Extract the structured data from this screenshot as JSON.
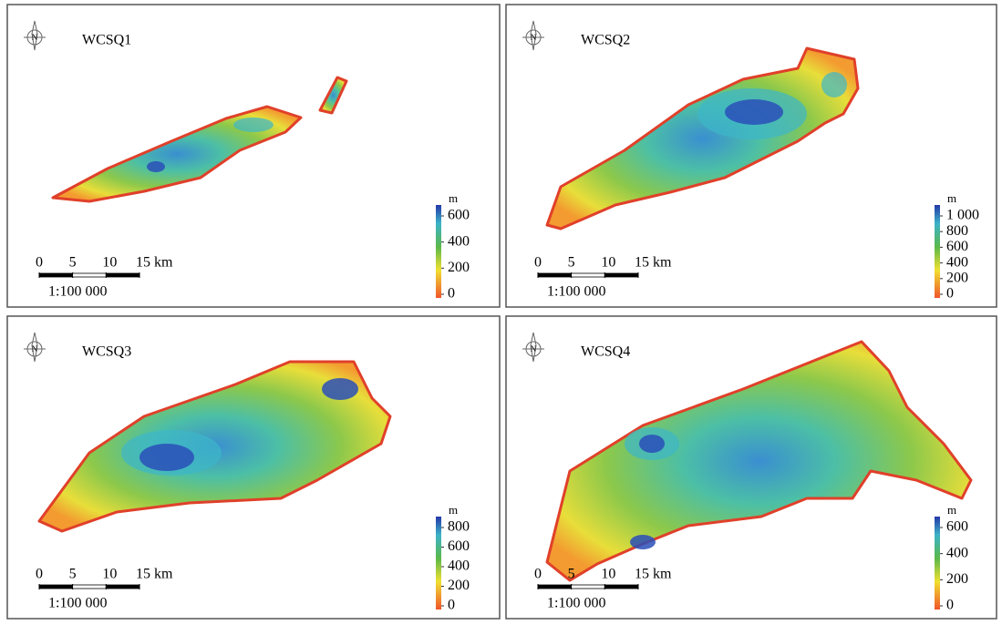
{
  "panels": [
    {
      "title": "WCSQ1",
      "legend": {
        "unit": "m",
        "ticks": [
          0,
          200,
          400,
          600
        ]
      },
      "scale_bar": {
        "ticks": [
          0,
          5,
          10,
          {
            "value": 15,
            "label": "15 km"
          }
        ],
        "ratio": "1:100 000"
      }
    },
    {
      "title": "WCSQ2",
      "legend": {
        "unit": "m",
        "ticks": [
          0,
          200,
          400,
          600,
          800,
          {
            "value": 1000,
            "label": "1 000"
          }
        ]
      },
      "scale_bar": {
        "ticks": [
          0,
          5,
          10,
          {
            "value": 15,
            "label": "15 km"
          }
        ],
        "ratio": "1:100 000"
      }
    },
    {
      "title": "WCSQ3",
      "legend": {
        "unit": "m",
        "ticks": [
          0,
          200,
          400,
          600,
          800
        ]
      },
      "scale_bar": {
        "ticks": [
          0,
          5,
          10,
          {
            "value": 15,
            "label": "15 km"
          }
        ],
        "ratio": "1:100 000"
      }
    },
    {
      "title": "WCSQ4",
      "legend": {
        "unit": "m",
        "ticks": [
          0,
          200,
          400,
          600
        ]
      },
      "scale_bar": {
        "ticks": [
          0,
          5,
          10,
          {
            "value": 15,
            "label": "15 km"
          }
        ],
        "ratio": "1:100 000"
      }
    }
  ]
}
